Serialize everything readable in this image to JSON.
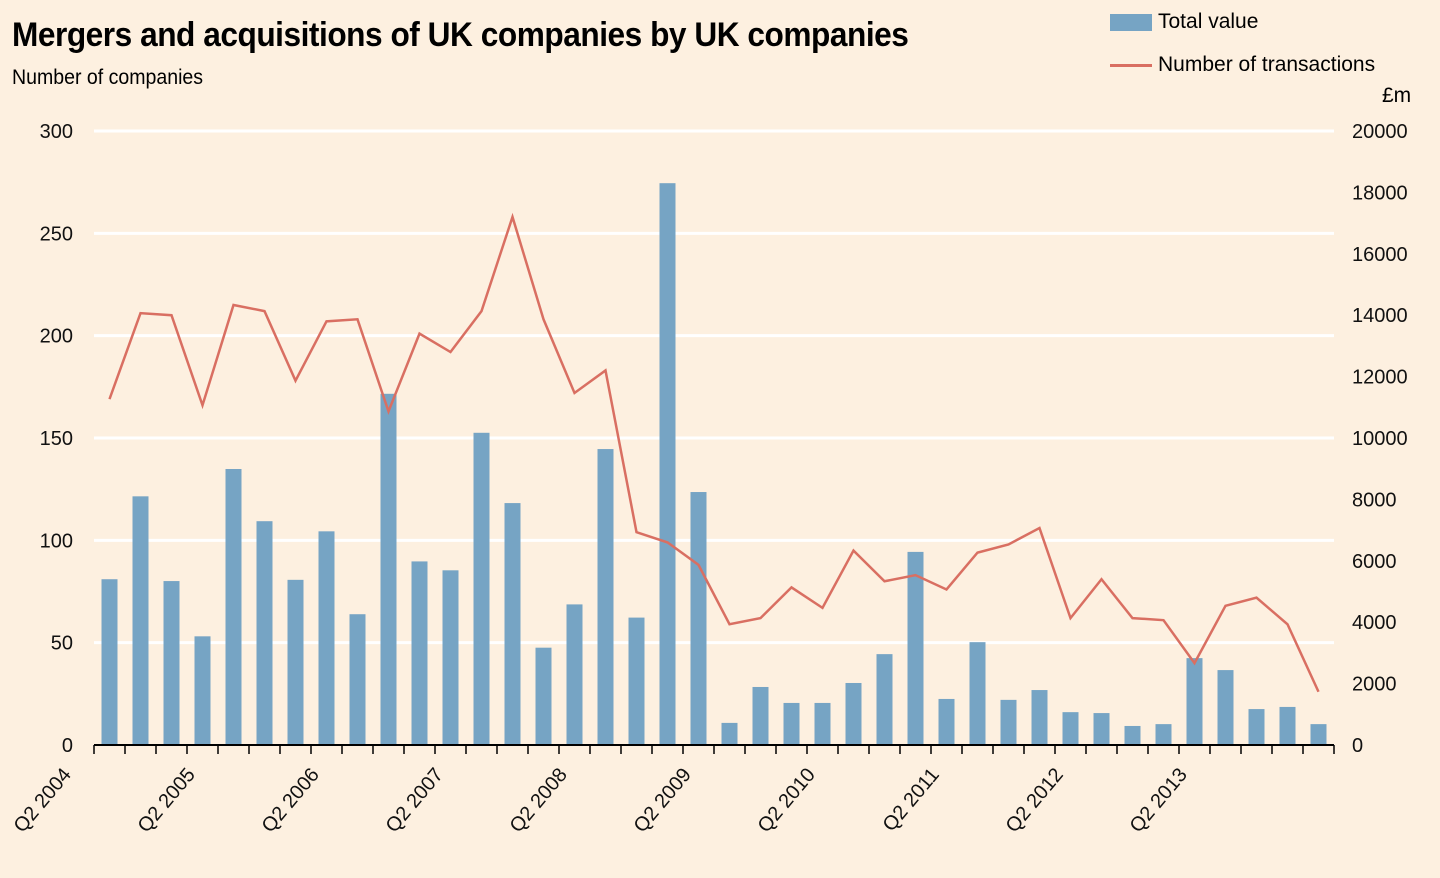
{
  "chart_data": {
    "type": "bar+line",
    "title": "Mergers and acquisitions of UK companies by UK companies",
    "subtitle": "Number of companies",
    "left_axis": {
      "label": "Number of companies",
      "ylim": [
        0,
        300
      ],
      "ticks": [
        0,
        50,
        100,
        150,
        200,
        250,
        300
      ]
    },
    "right_axis": {
      "label": "£m",
      "ylim": [
        0,
        20000
      ],
      "ticks": [
        0,
        2000,
        4000,
        6000,
        8000,
        10000,
        12000,
        14000,
        16000,
        18000,
        20000
      ]
    },
    "grid": true,
    "legend_position": "top-right",
    "categories": [
      "Q2 2004",
      "Q3 2004",
      "Q4 2004",
      "Q1 2005",
      "Q2 2005",
      "Q3 2005",
      "Q4 2005",
      "Q1 2006",
      "Q2 2006",
      "Q3 2006",
      "Q4 2006",
      "Q1 2007",
      "Q2 2007",
      "Q3 2007",
      "Q4 2007",
      "Q1 2008",
      "Q2 2008",
      "Q3 2008",
      "Q4 2008",
      "Q1 2009",
      "Q2 2009",
      "Q3 2009",
      "Q4 2009",
      "Q1 2010",
      "Q2 2010",
      "Q3 2010",
      "Q4 2010",
      "Q1 2011",
      "Q2 2011",
      "Q3 2011",
      "Q4 2011",
      "Q1 2012",
      "Q2 2012",
      "Q3 2012",
      "Q4 2012",
      "Q1 2013",
      "Q2 2013",
      "Q3 2013",
      "Q4 2013",
      "Q1 2014"
    ],
    "xtick_labels": [
      "Q2 2004",
      "Q2 2005",
      "Q2 2006",
      "Q2 2007",
      "Q2 2008",
      "Q2 2009",
      "Q2 2010",
      "Q2 2011",
      "Q2 2012",
      "Q2 2013"
    ],
    "series": [
      {
        "name": "Total value",
        "type": "bar",
        "axis": "right",
        "color": "#76a4c4",
        "values": [
          5400,
          8100,
          5340,
          3540,
          8990,
          7290,
          5380,
          6960,
          4260,
          11440,
          5980,
          5690,
          10170,
          7880,
          3170,
          4580,
          9640,
          4150,
          18300,
          8240,
          720,
          1890,
          1370,
          1370,
          2020,
          2960,
          6290,
          1500,
          3350,
          1470,
          1790,
          1070,
          1040,
          620,
          680,
          2830,
          2440,
          1170,
          1240,
          680
        ]
      },
      {
        "name": "Number of transactions",
        "type": "line",
        "axis": "left",
        "color": "#d96f62",
        "values": [
          169,
          211,
          210,
          166,
          215,
          212,
          178,
          207,
          208,
          163,
          201,
          192,
          212,
          258,
          208,
          172,
          183,
          104,
          99,
          88,
          59,
          62,
          77,
          67,
          95,
          80,
          83,
          76,
          94,
          98,
          106,
          62,
          81,
          62,
          61,
          40,
          68,
          72,
          59,
          26
        ]
      }
    ]
  },
  "legend": {
    "bar_label": "Total value",
    "line_label": "Number of transactions"
  }
}
